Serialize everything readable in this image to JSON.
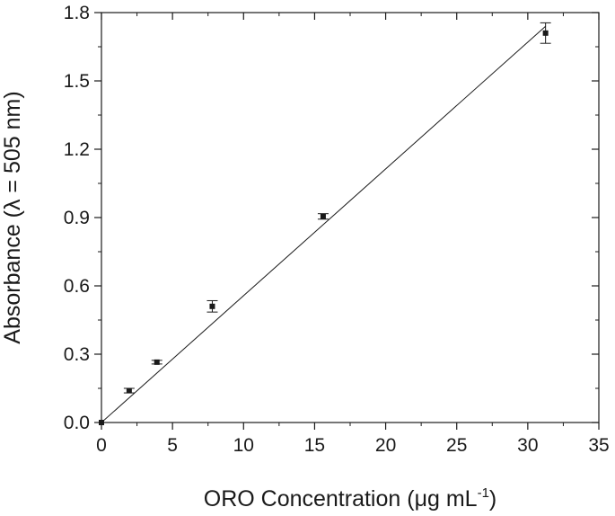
{
  "chart_data": {
    "type": "scatter",
    "xlabel": {
      "main": "ORO Concentration (",
      "mu": "μ",
      "unit": "g mL",
      "sup": "-1",
      "end": ")"
    },
    "ylabel": "Absorbance (λ = 505 nm)",
    "xlim": [
      0,
      35
    ],
    "ylim": [
      0,
      1.8
    ],
    "x_ticks": [
      "0",
      "5",
      "10",
      "15",
      "20",
      "25",
      "30",
      "35"
    ],
    "y_ticks": [
      "0.0",
      "0.3",
      "0.6",
      "0.9",
      "1.2",
      "1.5",
      "1.8"
    ],
    "grid": false,
    "legend": "none",
    "series": [
      {
        "points": [
          {
            "x": 0,
            "y": 0.0,
            "err": 0.0
          },
          {
            "x": 1.95,
            "y": 0.14,
            "err": 0.01
          },
          {
            "x": 3.9,
            "y": 0.265,
            "err": 0.008
          },
          {
            "x": 7.8,
            "y": 0.51,
            "err": 0.025
          },
          {
            "x": 15.6,
            "y": 0.905,
            "err": 0.012
          },
          {
            "x": 31.25,
            "y": 1.71,
            "err": 0.045
          }
        ]
      }
    ],
    "fit_line": {
      "x": [
        0,
        31.25
      ],
      "y": [
        0.0,
        1.74
      ]
    }
  }
}
